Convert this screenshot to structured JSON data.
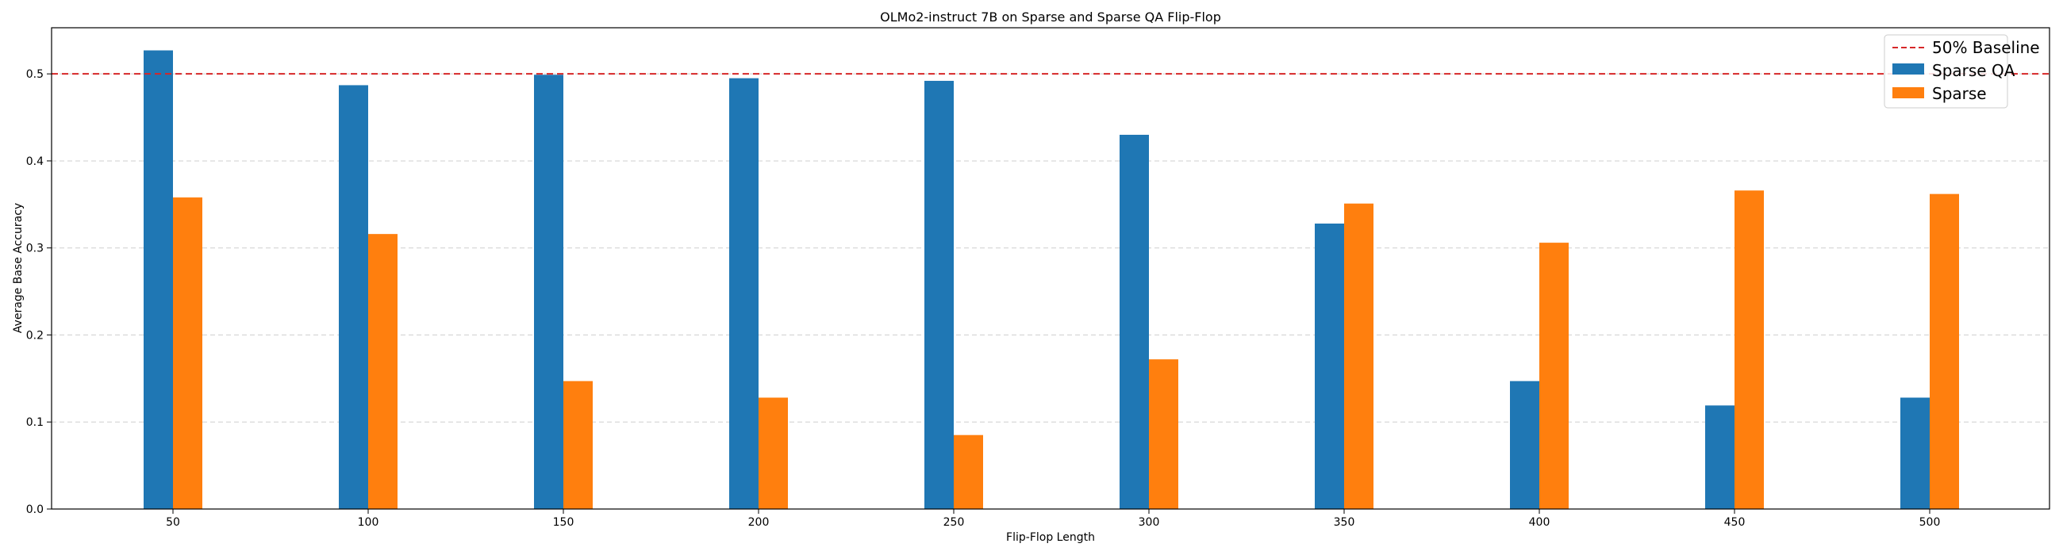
{
  "chart_data": {
    "type": "bar",
    "title": "OLMo2-instruct 7B on Sparse and Sparse QA Flip-Flop",
    "xlabel": "Flip-Flop Length",
    "ylabel": "Average Base Accuracy",
    "categories": [
      "50",
      "100",
      "150",
      "200",
      "250",
      "300",
      "350",
      "400",
      "450",
      "500"
    ],
    "series": [
      {
        "name": "Sparse QA",
        "color": "#1f77b4",
        "values": [
          0.527,
          0.487,
          0.499,
          0.495,
          0.492,
          0.43,
          0.328,
          0.147,
          0.119,
          0.128
        ]
      },
      {
        "name": "Sparse",
        "color": "#ff7f0e",
        "values": [
          0.358,
          0.316,
          0.147,
          0.128,
          0.085,
          0.172,
          0.351,
          0.306,
          0.366,
          0.362
        ]
      }
    ],
    "baseline": {
      "name": "50% Baseline",
      "value": 0.5,
      "color": "#d62728",
      "style": "dashed"
    },
    "y_ticks": [
      "0.0",
      "0.1",
      "0.2",
      "0.3",
      "0.4",
      "0.5"
    ],
    "ylim": [
      0,
      0.553
    ],
    "grid": "y-dashed",
    "legend_position": "top-right"
  }
}
